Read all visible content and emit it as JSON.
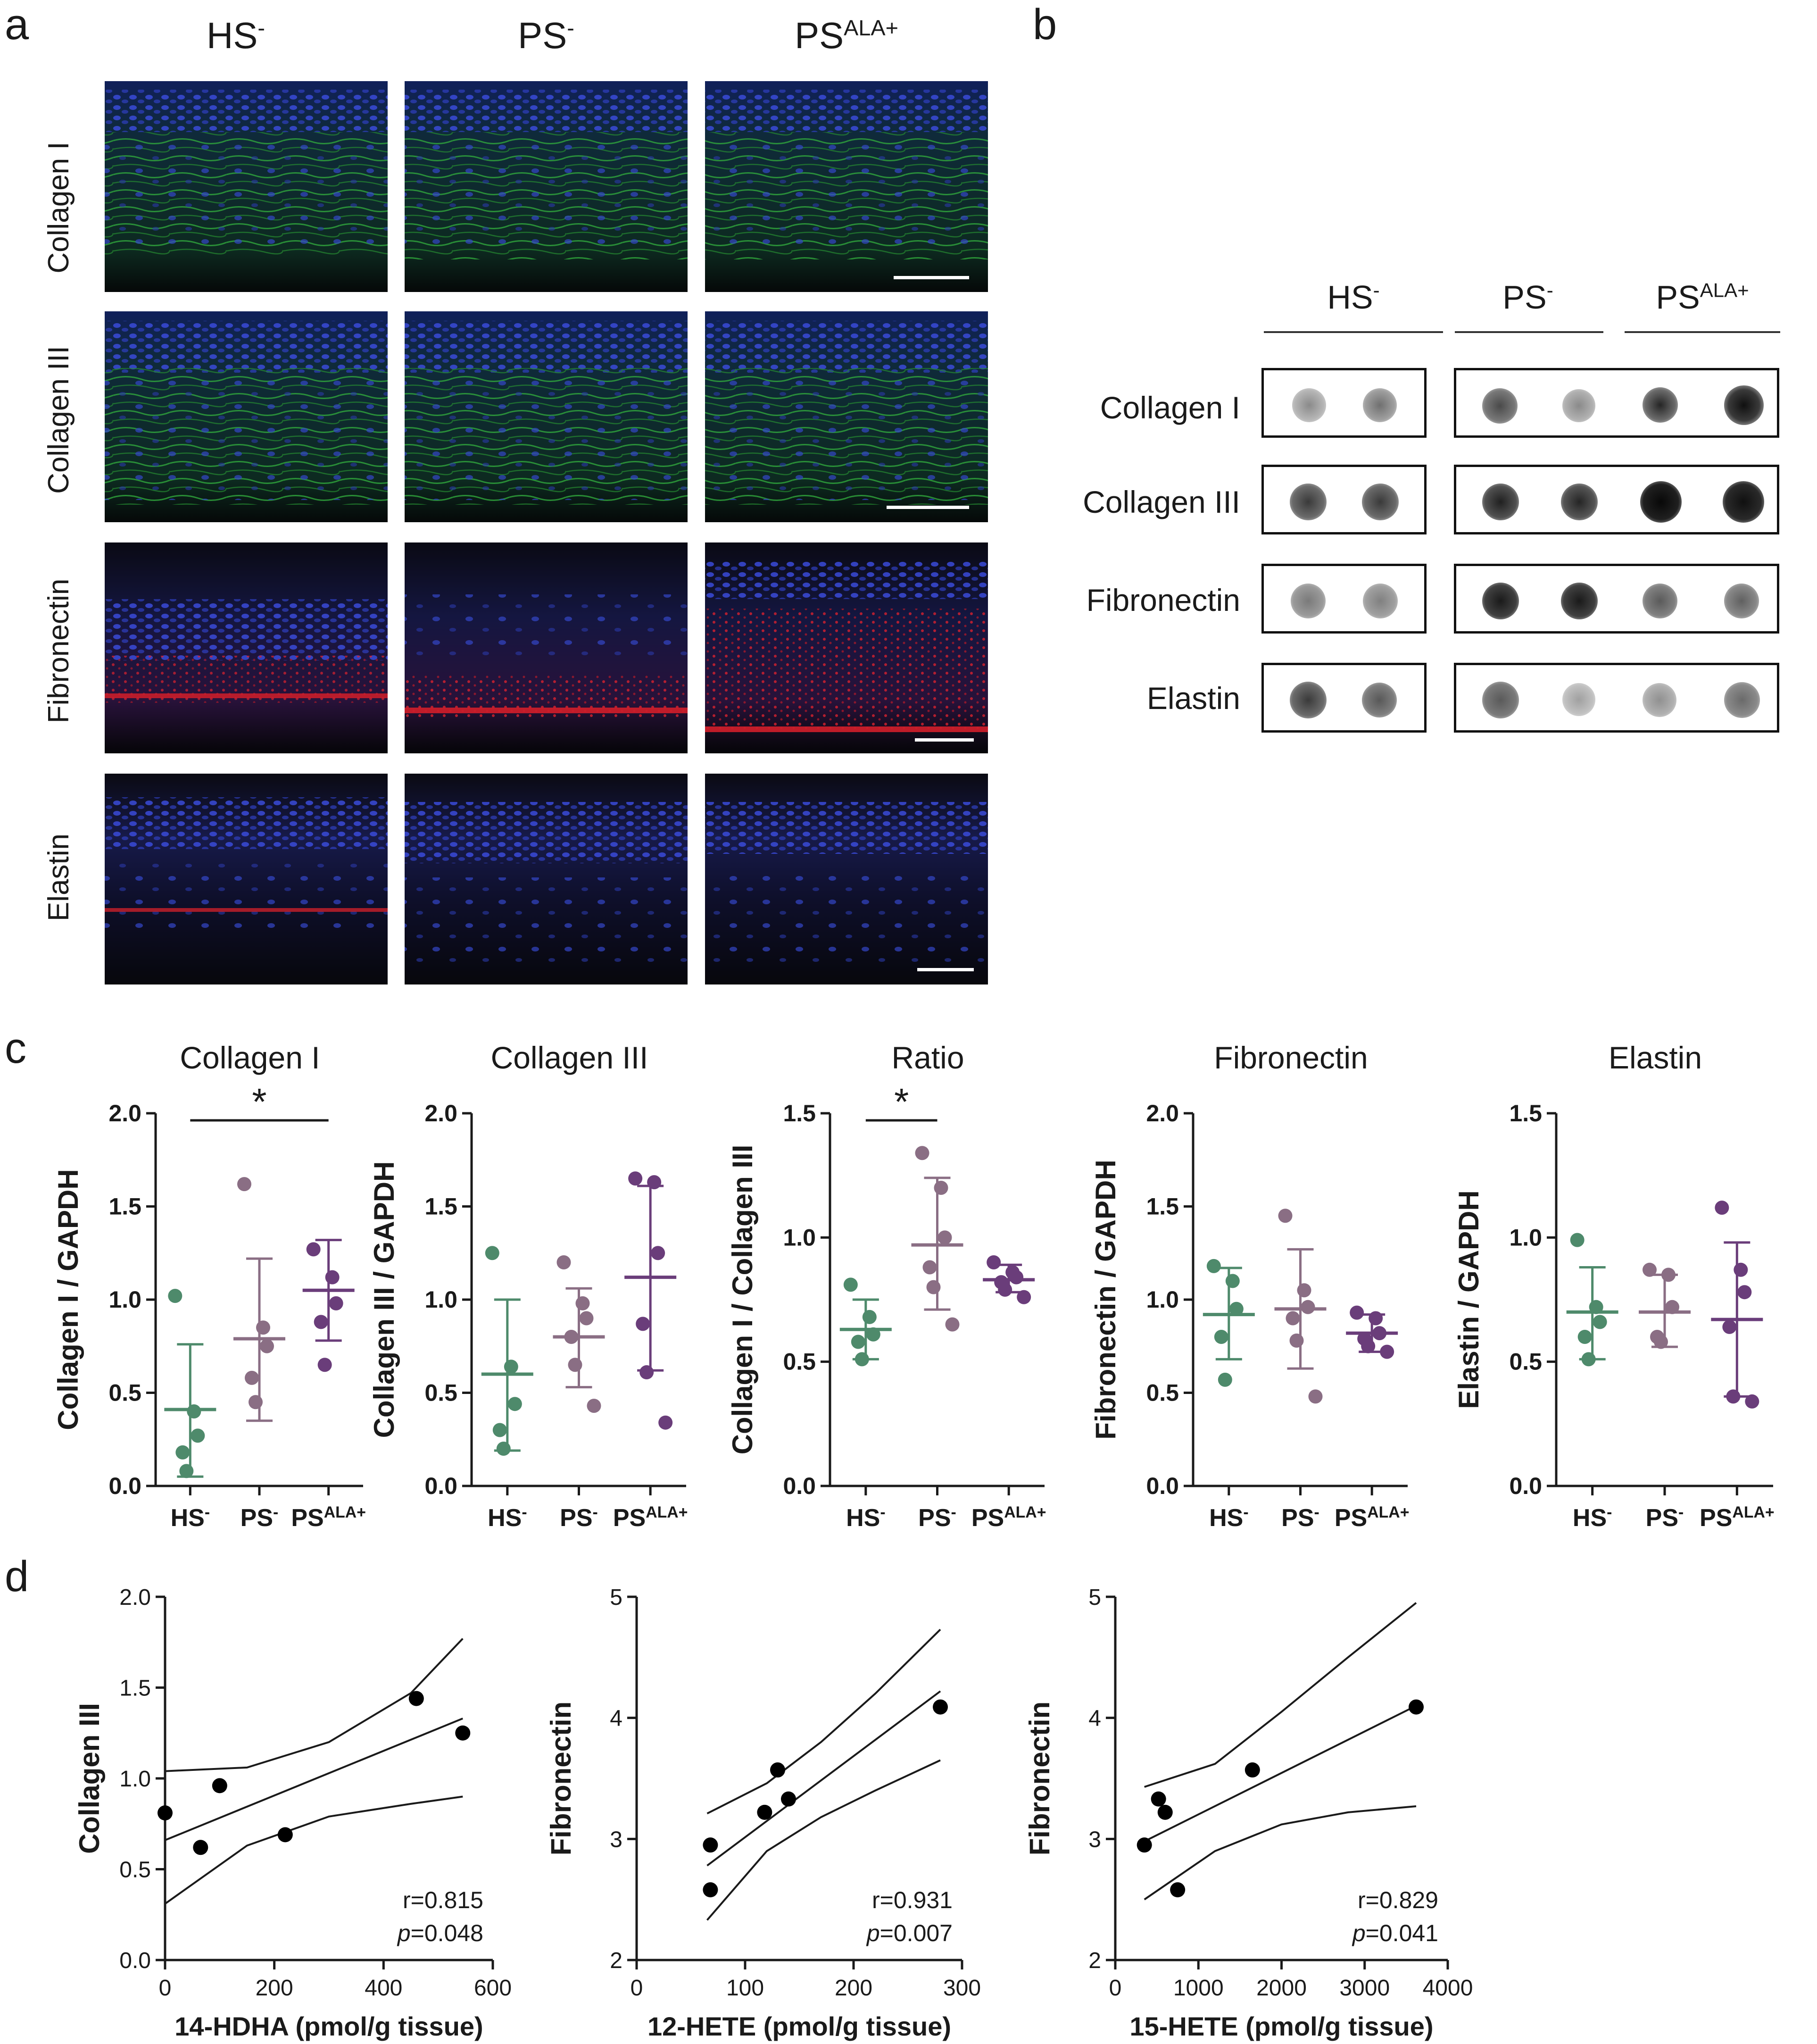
{
  "panels": {
    "a": {
      "letter": "a",
      "columns": [
        {
          "base": "HS",
          "sup": "-"
        },
        {
          "base": "PS",
          "sup": "-"
        },
        {
          "base": "PS",
          "sup": "ALA+"
        }
      ],
      "rows": [
        "Collagen I",
        "Collagen III",
        "Fibronectin",
        "Elastin"
      ]
    },
    "b": {
      "letter": "b",
      "groups": [
        {
          "base": "HS",
          "sup": "-"
        },
        {
          "base": "PS",
          "sup": "-"
        },
        {
          "base": "PS",
          "sup": "ALA+"
        }
      ],
      "rows": [
        "Collagen I",
        "Collagen III",
        "Fibronectin",
        "Elastin"
      ]
    },
    "c": {
      "letter": "c"
    },
    "d": {
      "letter": "d"
    }
  },
  "colors": {
    "hs": "#4e8a6b",
    "ps": "#8a6e84",
    "psala": "#6a3d7a",
    "nuclei": "#2c3cc8",
    "collagen_stain": "#2f9a3a",
    "red_stain": "#d21e2a"
  },
  "chart_data": [
    {
      "type": "scatter",
      "panel": "c",
      "title": "Collagen I",
      "ylabel": "Collagen I / GAPDH",
      "categories": [
        "HS-",
        "PS-",
        "PSALA+"
      ],
      "category_labels": [
        {
          "base": "HS",
          "sup": "-"
        },
        {
          "base": "PS",
          "sup": "-"
        },
        {
          "base": "PS",
          "sup": "ALA+"
        }
      ],
      "ylim": [
        0,
        2.0
      ],
      "yticks": [
        "0.0",
        "0.5",
        "1.0",
        "1.5",
        "2.0"
      ],
      "ytick_values": [
        0,
        0.5,
        1.0,
        1.5,
        2.0
      ],
      "series": [
        {
          "name": "HS-",
          "points": [
            1.02,
            0.4,
            0.27,
            0.18,
            0.08
          ],
          "mean": 0.41,
          "sd_low": 0.05,
          "sd_high": 0.76
        },
        {
          "name": "PS-",
          "points": [
            1.62,
            0.85,
            0.75,
            0.58,
            0.45
          ],
          "mean": 0.79,
          "sd_low": 0.35,
          "sd_high": 1.22
        },
        {
          "name": "PSALA+",
          "points": [
            1.27,
            1.12,
            0.98,
            0.88,
            0.65
          ],
          "mean": 1.05,
          "sd_low": 0.78,
          "sd_high": 1.32
        }
      ],
      "significance": {
        "label": "*",
        "from": 0,
        "to": 2
      }
    },
    {
      "type": "scatter",
      "panel": "c",
      "title": "Collagen III",
      "ylabel": "Collagen III / GAPDH",
      "categories": [
        "HS-",
        "PS-",
        "PSALA+"
      ],
      "category_labels": [
        {
          "base": "HS",
          "sup": "-"
        },
        {
          "base": "PS",
          "sup": "-"
        },
        {
          "base": "PS",
          "sup": "ALA+"
        }
      ],
      "ylim": [
        0,
        2.0
      ],
      "yticks": [
        "0.0",
        "0.5",
        "1.0",
        "1.5",
        "2.0"
      ],
      "ytick_values": [
        0,
        0.5,
        1.0,
        1.5,
        2.0
      ],
      "series": [
        {
          "name": "HS-",
          "points": [
            1.25,
            0.64,
            0.44,
            0.3,
            0.2
          ],
          "mean": 0.6,
          "sd_low": 0.19,
          "sd_high": 1.0
        },
        {
          "name": "PS-",
          "points": [
            1.2,
            0.98,
            0.9,
            0.8,
            0.65,
            0.43
          ],
          "mean": 0.8,
          "sd_low": 0.53,
          "sd_high": 1.06
        },
        {
          "name": "PSALA+",
          "points": [
            1.65,
            1.63,
            1.25,
            0.87,
            0.61,
            0.34
          ],
          "mean": 1.12,
          "sd_low": 0.62,
          "sd_high": 1.61
        }
      ]
    },
    {
      "type": "scatter",
      "panel": "c",
      "title": "Ratio",
      "ylabel": "Collagen I / Collagen III",
      "categories": [
        "HS-",
        "PS-",
        "PSALA+"
      ],
      "category_labels": [
        {
          "base": "HS",
          "sup": "-"
        },
        {
          "base": "PS",
          "sup": "-"
        },
        {
          "base": "PS",
          "sup": "ALA+"
        }
      ],
      "ylim": [
        0,
        1.5
      ],
      "yticks": [
        "0.0",
        "0.5",
        "1.0",
        "1.5"
      ],
      "ytick_values": [
        0,
        0.5,
        1.0,
        1.5
      ],
      "series": [
        {
          "name": "HS-",
          "points": [
            0.81,
            0.68,
            0.61,
            0.58,
            0.51
          ],
          "mean": 0.63,
          "sd_low": 0.51,
          "sd_high": 0.75
        },
        {
          "name": "PS-",
          "points": [
            1.34,
            1.2,
            1.0,
            0.88,
            0.8,
            0.65
          ],
          "mean": 0.97,
          "sd_low": 0.71,
          "sd_high": 1.24
        },
        {
          "name": "PSALA+",
          "points": [
            0.9,
            0.86,
            0.84,
            0.82,
            0.79,
            0.76
          ],
          "mean": 0.83,
          "sd_low": 0.78,
          "sd_high": 0.89
        }
      ],
      "significance": {
        "label": "*",
        "from": 0,
        "to": 1
      }
    },
    {
      "type": "scatter",
      "panel": "c",
      "title": "Fibronectin",
      "ylabel": "Fibronectin / GAPDH",
      "categories": [
        "HS-",
        "PS-",
        "PSALA+"
      ],
      "category_labels": [
        {
          "base": "HS",
          "sup": "-"
        },
        {
          "base": "PS",
          "sup": "-"
        },
        {
          "base": "PS",
          "sup": "ALA+"
        }
      ],
      "ylim": [
        0,
        2.0
      ],
      "yticks": [
        "0.0",
        "0.5",
        "1.0",
        "1.5",
        "2.0"
      ],
      "ytick_values": [
        0,
        0.5,
        1.0,
        1.5,
        2.0
      ],
      "series": [
        {
          "name": "HS-",
          "points": [
            1.18,
            1.1,
            0.95,
            0.8,
            0.57
          ],
          "mean": 0.92,
          "sd_low": 0.68,
          "sd_high": 1.17
        },
        {
          "name": "PS-",
          "points": [
            1.45,
            1.05,
            0.96,
            0.9,
            0.78,
            0.48
          ],
          "mean": 0.95,
          "sd_low": 0.63,
          "sd_high": 1.27
        },
        {
          "name": "PSALA+",
          "points": [
            0.93,
            0.9,
            0.82,
            0.79,
            0.75,
            0.72
          ],
          "mean": 0.82,
          "sd_low": 0.72,
          "sd_high": 0.92
        }
      ]
    },
    {
      "type": "scatter",
      "panel": "c",
      "title": "Elastin",
      "ylabel": "Elastin / GAPDH",
      "categories": [
        "HS-",
        "PS-",
        "PSALA+"
      ],
      "category_labels": [
        {
          "base": "HS",
          "sup": "-"
        },
        {
          "base": "PS",
          "sup": "-"
        },
        {
          "base": "PS",
          "sup": "ALA+"
        }
      ],
      "ylim": [
        0,
        1.5
      ],
      "yticks": [
        "0.0",
        "0.5",
        "1.0",
        "1.5"
      ],
      "ytick_values": [
        0,
        0.5,
        1.0,
        1.5
      ],
      "series": [
        {
          "name": "HS-",
          "points": [
            0.99,
            0.72,
            0.66,
            0.6,
            0.51
          ],
          "mean": 0.7,
          "sd_low": 0.51,
          "sd_high": 0.88
        },
        {
          "name": "PS-",
          "points": [
            0.87,
            0.85,
            0.72,
            0.6,
            0.58
          ],
          "mean": 0.7,
          "sd_low": 0.56,
          "sd_high": 0.85
        },
        {
          "name": "PSALA+",
          "points": [
            1.12,
            0.87,
            0.78,
            0.64,
            0.36,
            0.34
          ],
          "mean": 0.67,
          "sd_low": 0.36,
          "sd_high": 0.98
        }
      ]
    },
    {
      "type": "scatter",
      "panel": "d",
      "xlabel": "14-HDHA (pmol/g tissue)",
      "ylabel": "Collagen III",
      "xlim": [
        0,
        600
      ],
      "ylim": [
        0,
        2.0
      ],
      "xticks": [
        "0",
        "200",
        "400",
        "600"
      ],
      "xtick_values": [
        0,
        200,
        400,
        600
      ],
      "yticks": [
        "0.0",
        "0.5",
        "1.0",
        "1.5",
        "2.0"
      ],
      "ytick_values": [
        0,
        0.5,
        1.0,
        1.5,
        2.0
      ],
      "x": [
        0,
        65,
        100,
        220,
        460,
        545
      ],
      "y": [
        0.81,
        0.62,
        0.96,
        0.69,
        1.44,
        1.25
      ],
      "fit": {
        "x0": 0,
        "y0": 0.66,
        "x1": 545,
        "y1": 1.33
      },
      "ci_upper": {
        "x": [
          0,
          150,
          300,
          450,
          545
        ],
        "y": [
          1.04,
          1.06,
          1.2,
          1.47,
          1.77
        ]
      },
      "ci_lower": {
        "x": [
          0,
          150,
          300,
          450,
          545
        ],
        "y": [
          0.31,
          0.63,
          0.79,
          0.86,
          0.9
        ]
      },
      "r": "r=0.815",
      "p_label": "p",
      "p_value": "=0.048"
    },
    {
      "type": "scatter",
      "panel": "d",
      "xlabel": "12-HETE (pmol/g tissue)",
      "ylabel": "Fibronectin",
      "xlim": [
        0,
        300
      ],
      "ylim": [
        2,
        5
      ],
      "xticks": [
        "0",
        "100",
        "200",
        "300"
      ],
      "xtick_values": [
        0,
        100,
        200,
        300
      ],
      "yticks": [
        "2",
        "3",
        "4",
        "5"
      ],
      "ytick_values": [
        2,
        3,
        4,
        5
      ],
      "x": [
        68,
        68,
        118,
        130,
        140,
        280
      ],
      "y": [
        2.95,
        2.58,
        3.22,
        3.57,
        3.33,
        4.09
      ],
      "fit": {
        "x0": 65,
        "y0": 2.78,
        "x1": 280,
        "y1": 4.22
      },
      "ci_upper": {
        "x": [
          65,
          120,
          170,
          220,
          280
        ],
        "y": [
          3.21,
          3.46,
          3.8,
          4.2,
          4.73
        ]
      },
      "ci_lower": {
        "x": [
          65,
          120,
          170,
          220,
          280
        ],
        "y": [
          2.33,
          2.9,
          3.18,
          3.4,
          3.65
        ]
      },
      "r": "r=0.931",
      "p_label": "p",
      "p_value": "=0.007"
    },
    {
      "type": "scatter",
      "panel": "d",
      "xlabel": "15-HETE (pmol/g tissue)",
      "ylabel": "Fibronectin",
      "xlim": [
        0,
        4000
      ],
      "ylim": [
        2,
        5
      ],
      "xticks": [
        "0",
        "1000",
        "2000",
        "3000",
        "4000"
      ],
      "xtick_values": [
        0,
        1000,
        2000,
        3000,
        4000
      ],
      "yticks": [
        "2",
        "3",
        "4",
        "5"
      ],
      "ytick_values": [
        2,
        3,
        4,
        5
      ],
      "x": [
        350,
        520,
        600,
        750,
        1650,
        3620
      ],
      "y": [
        2.95,
        3.33,
        3.22,
        2.58,
        3.57,
        4.09
      ],
      "fit": {
        "x0": 350,
        "y0": 2.98,
        "x1": 3620,
        "y1": 4.1
      },
      "ci_upper": {
        "x": [
          350,
          1200,
          2000,
          2800,
          3620
        ],
        "y": [
          3.43,
          3.62,
          4.05,
          4.5,
          4.95
        ]
      },
      "ci_lower": {
        "x": [
          350,
          1200,
          2000,
          2800,
          3620
        ],
        "y": [
          2.5,
          2.9,
          3.12,
          3.22,
          3.27
        ]
      },
      "r": "r=0.829",
      "p_label": "p",
      "p_value": "=0.041"
    }
  ]
}
